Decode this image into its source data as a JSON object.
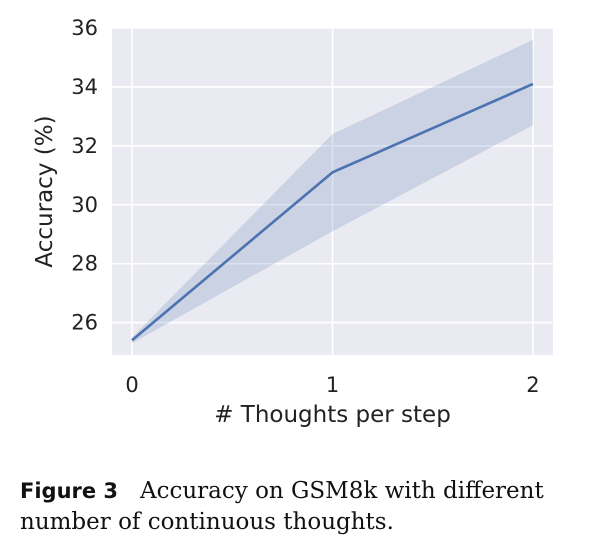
{
  "chart_data": {
    "type": "line",
    "title": "",
    "xlabel": "# Thoughts per step",
    "ylabel": "Accuracy (%)",
    "x": [
      0,
      1,
      2
    ],
    "xticks": [
      "0",
      "1",
      "2"
    ],
    "yticks": [
      "26",
      "28",
      "30",
      "32",
      "34",
      "36"
    ],
    "ylim": [
      24.9,
      36
    ],
    "xlim": [
      -0.1,
      2.1
    ],
    "grid": true,
    "legend": "none",
    "series": [
      {
        "values": [
          25.4,
          31.1,
          34.1
        ],
        "band_lower": [
          25.3,
          29.1,
          32.7
        ],
        "band_upper": [
          25.5,
          32.4,
          35.6
        ],
        "color": "#4c72b0"
      }
    ],
    "background_color": "#eaeaf2"
  },
  "caption": {
    "label": "Figure 3",
    "text": "Accuracy on GSM8k with different number of continuous thoughts."
  }
}
